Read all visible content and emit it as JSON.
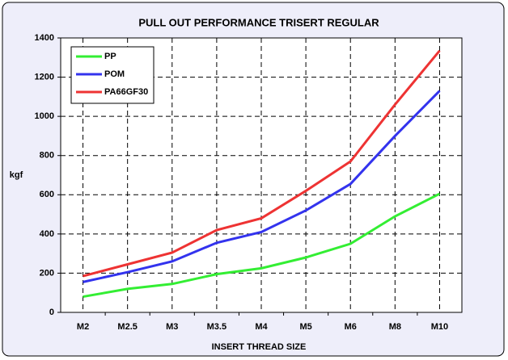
{
  "chart_data": {
    "type": "line",
    "title": "PULL OUT PERFORMANCE TRISERT REGULAR",
    "x_label": "INSERT THREAD SIZE",
    "y_label": "kgf",
    "categories": [
      "M2",
      "M2.5",
      "M3",
      "M3.5",
      "M4",
      "M5",
      "M6",
      "M8",
      "M10"
    ],
    "series": [
      {
        "name": "PP",
        "color": "#33ee33",
        "values": [
          80,
          120,
          145,
          195,
          225,
          280,
          350,
          490,
          605
        ]
      },
      {
        "name": "POM",
        "color": "#3333ee",
        "values": [
          155,
          205,
          260,
          355,
          410,
          520,
          655,
          900,
          1130
        ]
      },
      {
        "name": "PA66GF30",
        "color": "#ee3333",
        "values": [
          185,
          245,
          305,
          420,
          480,
          620,
          770,
          1060,
          1335
        ]
      }
    ],
    "ylim": [
      0,
      1400
    ],
    "yticks": [
      0,
      200,
      400,
      600,
      800,
      1000,
      1200,
      1400
    ],
    "grid": true,
    "legend": "top-left"
  }
}
